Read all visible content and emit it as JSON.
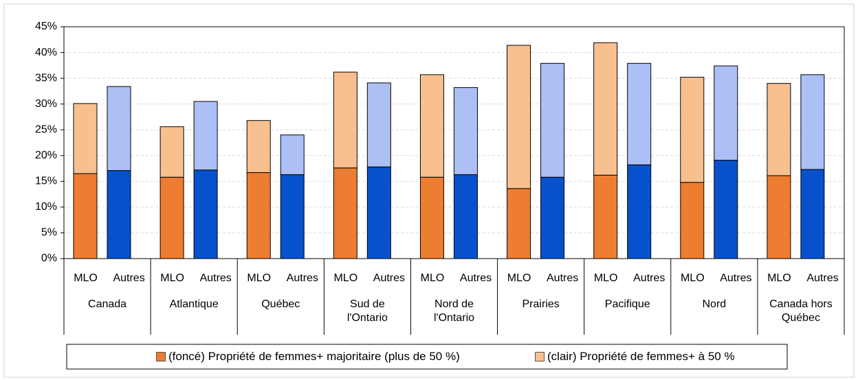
{
  "chart_data": {
    "type": "stacked_bar",
    "groups": [
      "Canada",
      "Atlantique",
      "Québec",
      "Sud de l'Ontario",
      "Nord de l'Ontario",
      "Prairies",
      "Pacifique",
      "Nord",
      "Canada hors Québec"
    ],
    "categories": [
      "MLO",
      "Autres",
      "MLO",
      "Autres",
      "MLO",
      "Autres",
      "MLO",
      "Autres",
      "MLO",
      "Autres",
      "MLO",
      "Autres",
      "MLO",
      "Autres",
      "MLO",
      "Autres",
      "MLO",
      "Autres"
    ],
    "series": [
      {
        "name": "(foncé) Propriété de femmes+ majoritaire (plus de 50 %)",
        "color": "#ed7d31",
        "colors": [
          "#ed7d31",
          "#0752cc",
          "#ed7d31",
          "#0752cc",
          "#ed7d31",
          "#0752cc",
          "#ed7d31",
          "#0752cc",
          "#ed7d31",
          "#0752cc",
          "#ed7d31",
          "#0752cc",
          "#ed7d31",
          "#0752cc",
          "#ed7d31",
          "#0752cc",
          "#ed7d31",
          "#0752cc"
        ],
        "values": [
          16.5,
          17.1,
          15.8,
          17.2,
          16.7,
          16.3,
          17.6,
          17.8,
          15.8,
          16.3,
          13.6,
          15.8,
          16.2,
          18.2,
          14.8,
          19.1,
          16.1,
          17.3
        ]
      },
      {
        "name": "(clair) Propriété de femmes+ à 50 %",
        "color": "#f8c08f",
        "colors": [
          "#f8c08f",
          "#adc0f5",
          "#f8c08f",
          "#adc0f5",
          "#f8c08f",
          "#adc0f5",
          "#f8c08f",
          "#adc0f5",
          "#f8c08f",
          "#adc0f5",
          "#f8c08f",
          "#adc0f5",
          "#f8c08f",
          "#adc0f5",
          "#f8c08f",
          "#adc0f5",
          "#f8c08f",
          "#adc0f5"
        ],
        "values": [
          13.6,
          16.3,
          9.8,
          13.3,
          10.1,
          7.7,
          18.6,
          16.3,
          19.9,
          16.9,
          27.8,
          22.1,
          25.7,
          19.7,
          20.4,
          18.3,
          17.9,
          18.4
        ]
      }
    ],
    "ylim": [
      0,
      45
    ],
    "yticks": [
      {
        "value": 0,
        "label": "0%"
      },
      {
        "value": 5,
        "label": "5%"
      },
      {
        "value": 10,
        "label": "10%"
      },
      {
        "value": 15,
        "label": "15%"
      },
      {
        "value": 20,
        "label": "20%"
      },
      {
        "value": 25,
        "label": "25%"
      },
      {
        "value": 30,
        "label": "30%"
      },
      {
        "value": 35,
        "label": "35%"
      },
      {
        "value": 40,
        "label": "40%"
      },
      {
        "value": 45,
        "label": "45%"
      }
    ],
    "grid": true
  }
}
